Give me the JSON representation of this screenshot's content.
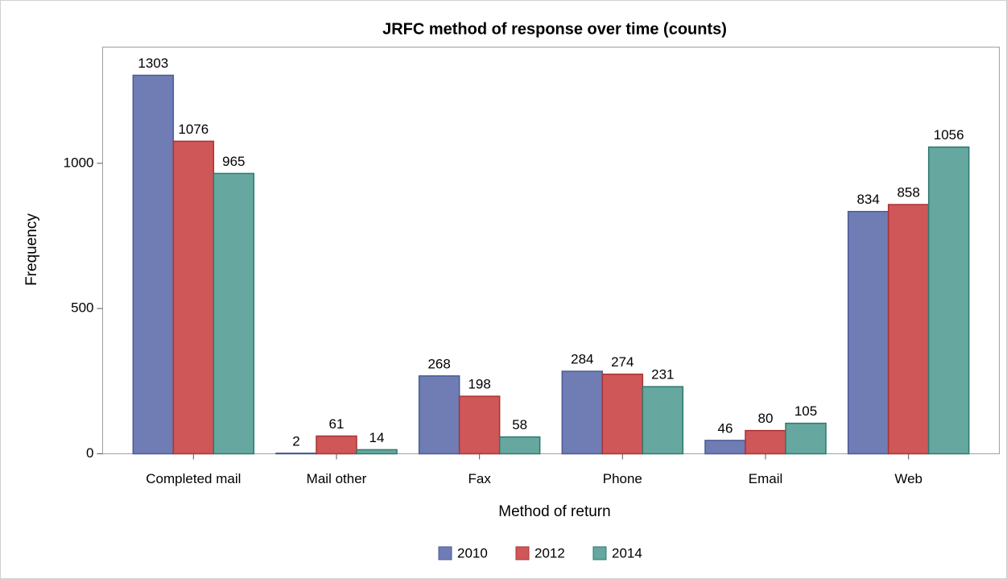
{
  "chart_data": {
    "type": "bar",
    "title": "JRFC method of response over time (counts)",
    "x_label": "Method of return",
    "y_label": "Frequency",
    "categories": [
      "Completed mail",
      "Mail other",
      "Fax",
      "Phone",
      "Email",
      "Web"
    ],
    "series": [
      {
        "name": "2010",
        "color": "#6f7db4",
        "edge": "#4b5a96",
        "values": [
          1303,
          2,
          268,
          284,
          46,
          834
        ]
      },
      {
        "name": "2012",
        "color": "#d05757",
        "edge": "#a83434",
        "values": [
          1076,
          61,
          198,
          274,
          80,
          858
        ]
      },
      {
        "name": "2014",
        "color": "#66a79f",
        "edge": "#2c7a6d",
        "values": [
          965,
          14,
          58,
          231,
          105,
          1056
        ]
      }
    ],
    "ylim": [
      0,
      1400
    ],
    "yticks": [
      0,
      500,
      1000
    ],
    "legend": "bottom"
  }
}
